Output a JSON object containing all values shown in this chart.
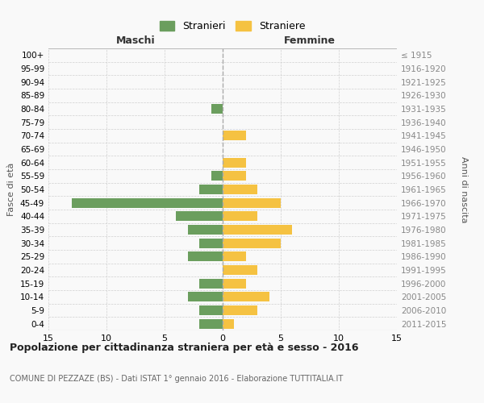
{
  "age_groups": [
    "0-4",
    "5-9",
    "10-14",
    "15-19",
    "20-24",
    "25-29",
    "30-34",
    "35-39",
    "40-44",
    "45-49",
    "50-54",
    "55-59",
    "60-64",
    "65-69",
    "70-74",
    "75-79",
    "80-84",
    "85-89",
    "90-94",
    "95-99",
    "100+"
  ],
  "birth_years": [
    "2011-2015",
    "2006-2010",
    "2001-2005",
    "1996-2000",
    "1991-1995",
    "1986-1990",
    "1981-1985",
    "1976-1980",
    "1971-1975",
    "1966-1970",
    "1961-1965",
    "1956-1960",
    "1951-1955",
    "1946-1950",
    "1941-1945",
    "1936-1940",
    "1931-1935",
    "1926-1930",
    "1921-1925",
    "1916-1920",
    "≤ 1915"
  ],
  "maschi": [
    2,
    2,
    3,
    2,
    0,
    3,
    2,
    3,
    4,
    13,
    2,
    1,
    0,
    0,
    0,
    0,
    1,
    0,
    0,
    0,
    0
  ],
  "femmine": [
    1,
    3,
    4,
    2,
    3,
    2,
    5,
    6,
    3,
    5,
    3,
    2,
    2,
    0,
    2,
    0,
    0,
    0,
    0,
    0,
    0
  ],
  "male_color": "#6b9e5e",
  "female_color": "#f5c242",
  "background_color": "#f9f9f9",
  "grid_color": "#d0d0d0",
  "title": "Popolazione per cittadinanza straniera per età e sesso - 2016",
  "subtitle": "COMUNE DI PEZZAZE (BS) - Dati ISTAT 1° gennaio 2016 - Elaborazione TUTTITALIA.IT",
  "xlabel_left": "Maschi",
  "xlabel_right": "Femmine",
  "ylabel_left": "Fasce di età",
  "ylabel_right": "Anni di nascita",
  "xlim": 15,
  "legend_stranieri": "Stranieri",
  "legend_straniere": "Straniere"
}
